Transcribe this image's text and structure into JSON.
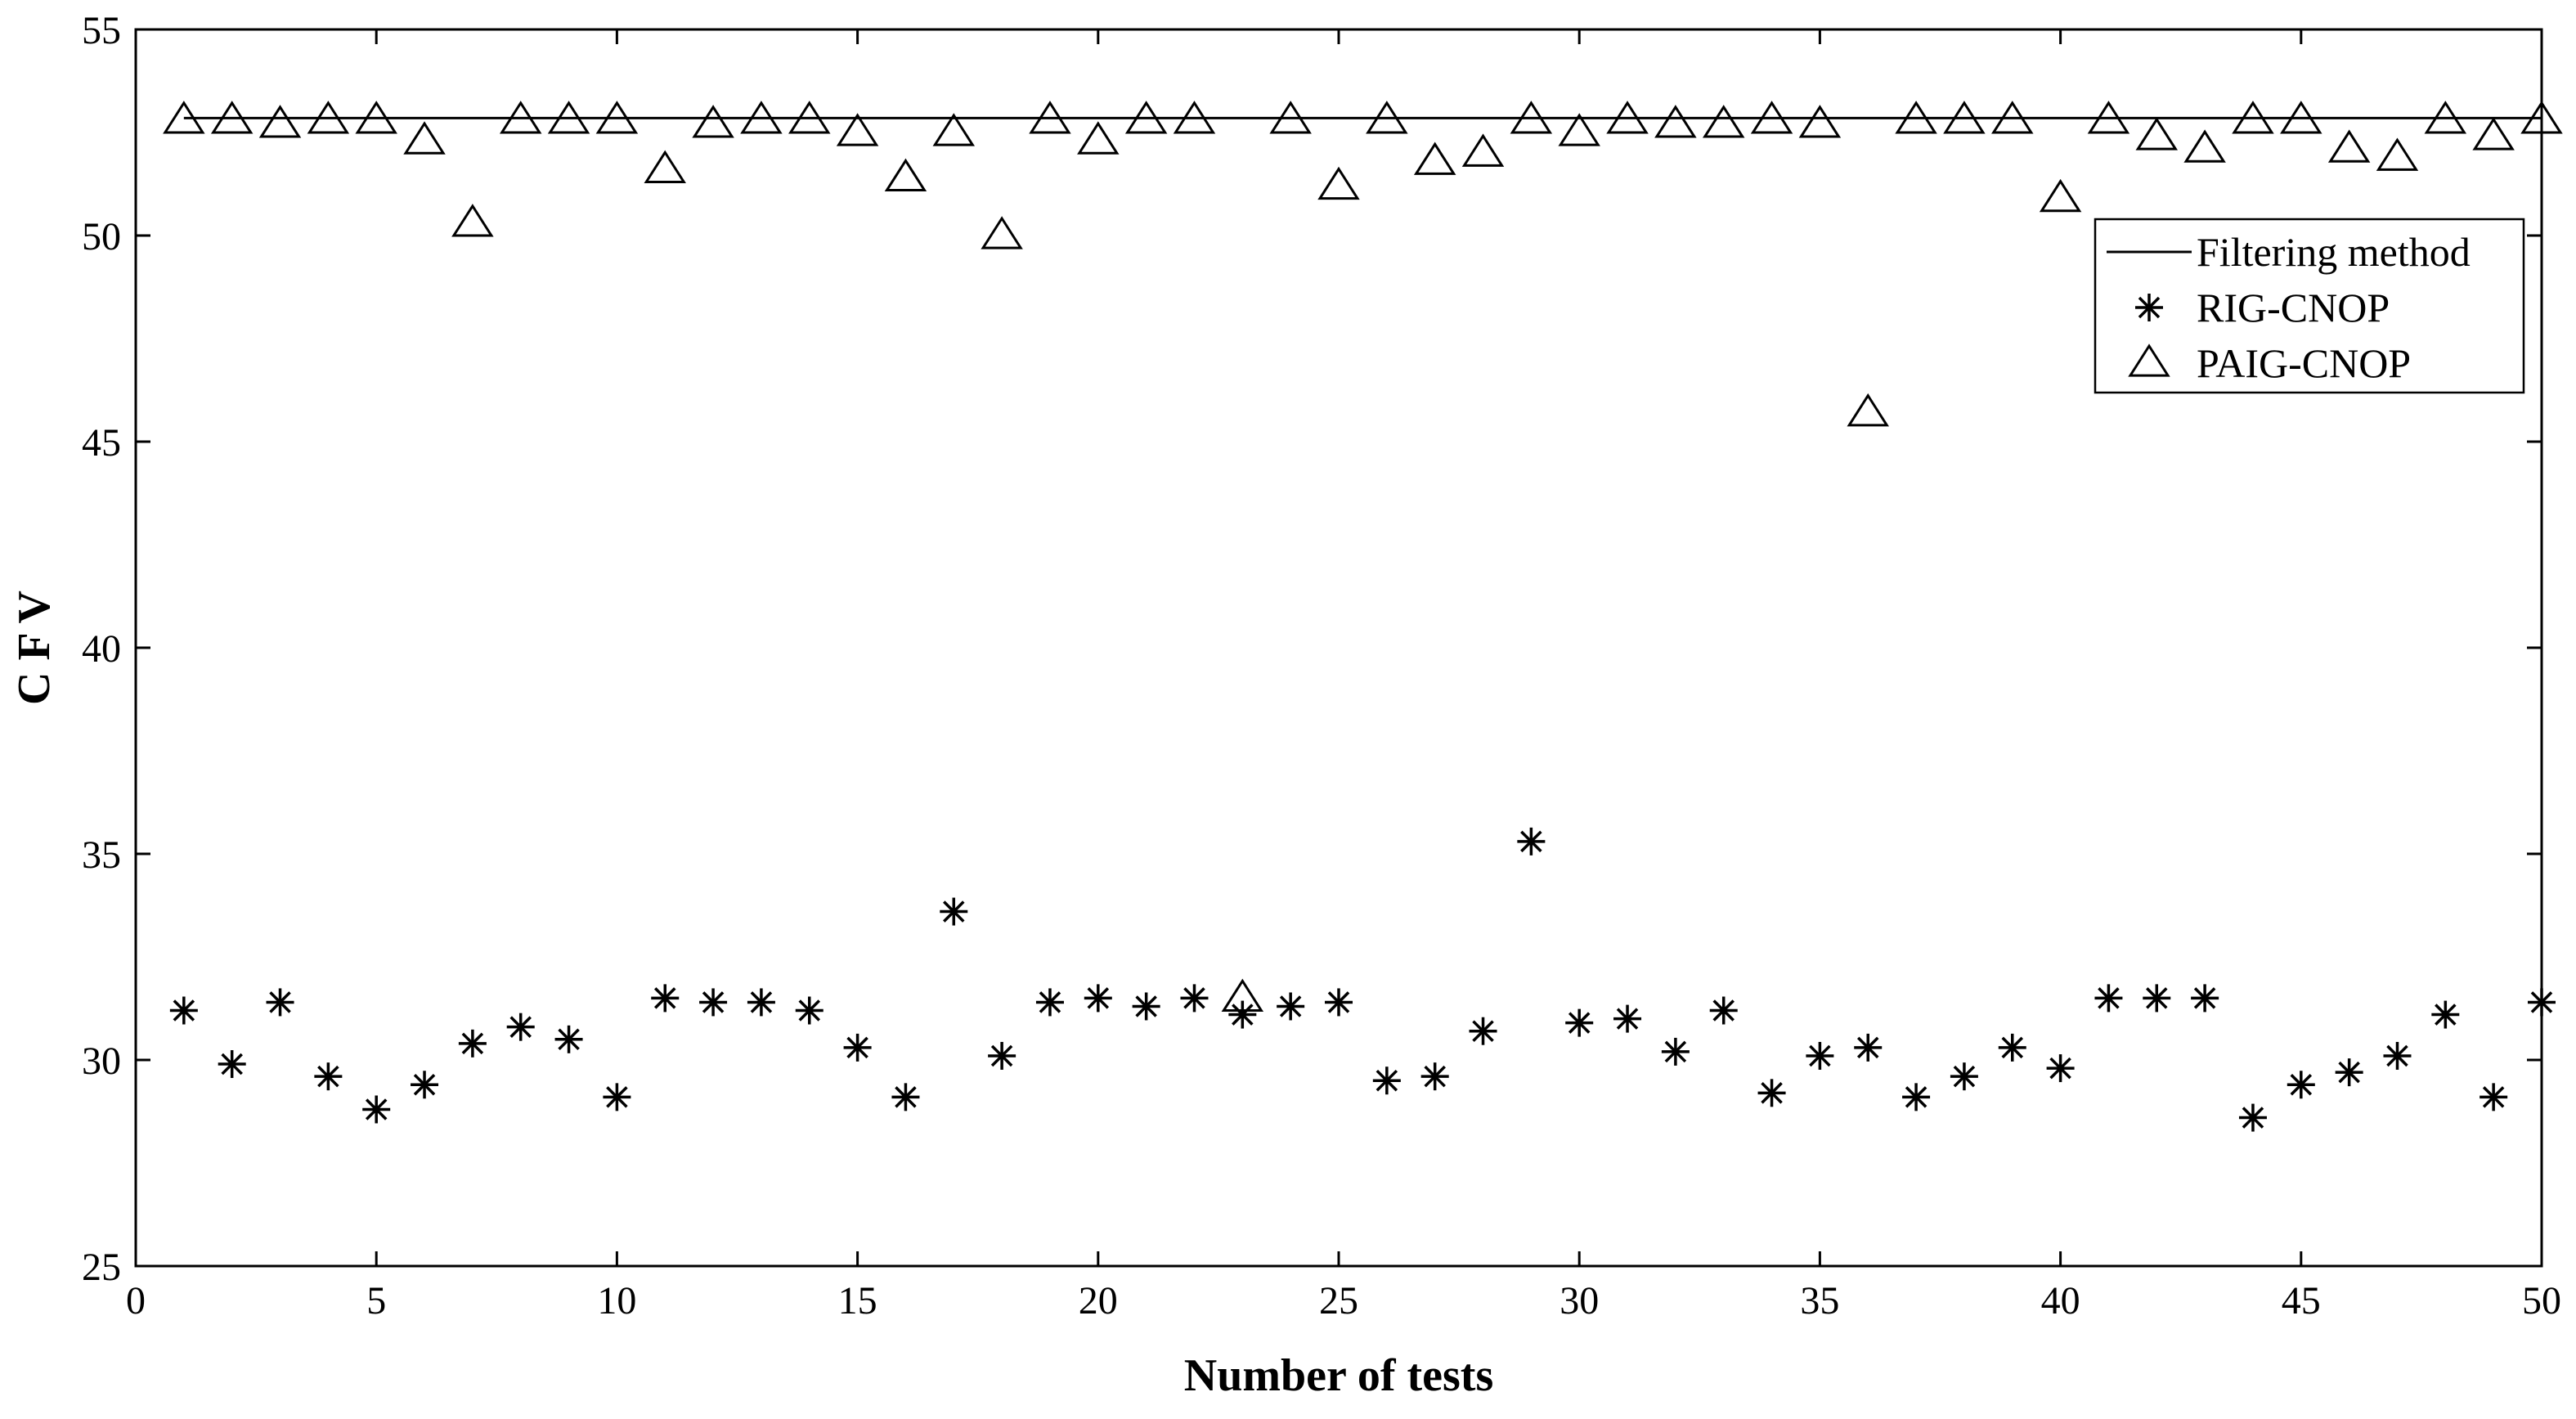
{
  "chart_data": {
    "type": "scatter",
    "title": "",
    "xlabel": "Number of tests",
    "ylabel": "C F V",
    "xlim": [
      0,
      50
    ],
    "ylim": [
      25,
      55
    ],
    "xticks": [
      0,
      5,
      10,
      15,
      20,
      25,
      30,
      35,
      40,
      45,
      50
    ],
    "yticks": [
      25,
      30,
      35,
      40,
      45,
      50,
      55
    ],
    "grid": false,
    "legend_position": "upper-right",
    "color": "#000000",
    "series": [
      {
        "name": "Filtering method",
        "style": "line",
        "x": [
          1,
          50
        ],
        "values": [
          52.85,
          52.85
        ]
      },
      {
        "name": "RIG-CNOP",
        "style": "asterisk",
        "x": [
          1,
          2,
          3,
          4,
          5,
          6,
          7,
          8,
          9,
          10,
          11,
          12,
          13,
          14,
          15,
          16,
          17,
          18,
          19,
          20,
          21,
          22,
          23,
          24,
          25,
          26,
          27,
          28,
          29,
          30,
          31,
          32,
          33,
          34,
          35,
          36,
          37,
          38,
          39,
          40,
          41,
          42,
          43,
          44,
          45,
          46,
          47,
          48,
          49,
          50
        ],
        "values": [
          31.2,
          29.9,
          31.4,
          29.6,
          28.8,
          29.4,
          30.4,
          30.8,
          30.5,
          29.1,
          31.5,
          31.4,
          31.4,
          31.2,
          30.3,
          29.1,
          33.6,
          30.1,
          31.4,
          31.5,
          31.3,
          31.5,
          31.1,
          31.3,
          31.4,
          29.5,
          29.6,
          30.7,
          35.3,
          30.9,
          31.0,
          30.2,
          31.2,
          29.2,
          30.1,
          30.3,
          29.1,
          29.6,
          30.3,
          29.8,
          31.5,
          31.5,
          31.5,
          28.6,
          29.4,
          29.7,
          30.1,
          31.1,
          29.1,
          31.4
        ]
      },
      {
        "name": "PAIG-CNOP",
        "style": "triangle",
        "x": [
          1,
          2,
          3,
          4,
          5,
          6,
          7,
          8,
          9,
          10,
          11,
          12,
          13,
          14,
          15,
          16,
          17,
          18,
          19,
          20,
          21,
          22,
          23,
          24,
          25,
          26,
          27,
          28,
          29,
          30,
          31,
          32,
          33,
          34,
          35,
          36,
          37,
          38,
          39,
          40,
          41,
          42,
          43,
          44,
          45,
          46,
          47,
          48,
          49,
          50
        ],
        "values": [
          52.8,
          52.8,
          52.7,
          52.8,
          52.8,
          52.3,
          50.3,
          52.8,
          52.8,
          52.8,
          51.6,
          52.7,
          52.8,
          52.8,
          52.5,
          51.4,
          52.5,
          50.0,
          52.8,
          52.3,
          52.8,
          52.8,
          31.5,
          52.8,
          51.2,
          52.8,
          51.8,
          52.0,
          52.8,
          52.5,
          52.8,
          52.7,
          52.7,
          52.8,
          52.7,
          45.7,
          52.8,
          52.8,
          52.8,
          50.9,
          52.8,
          52.4,
          52.1,
          52.8,
          52.8,
          52.1,
          51.9,
          52.8,
          52.4,
          52.8
        ]
      }
    ]
  }
}
